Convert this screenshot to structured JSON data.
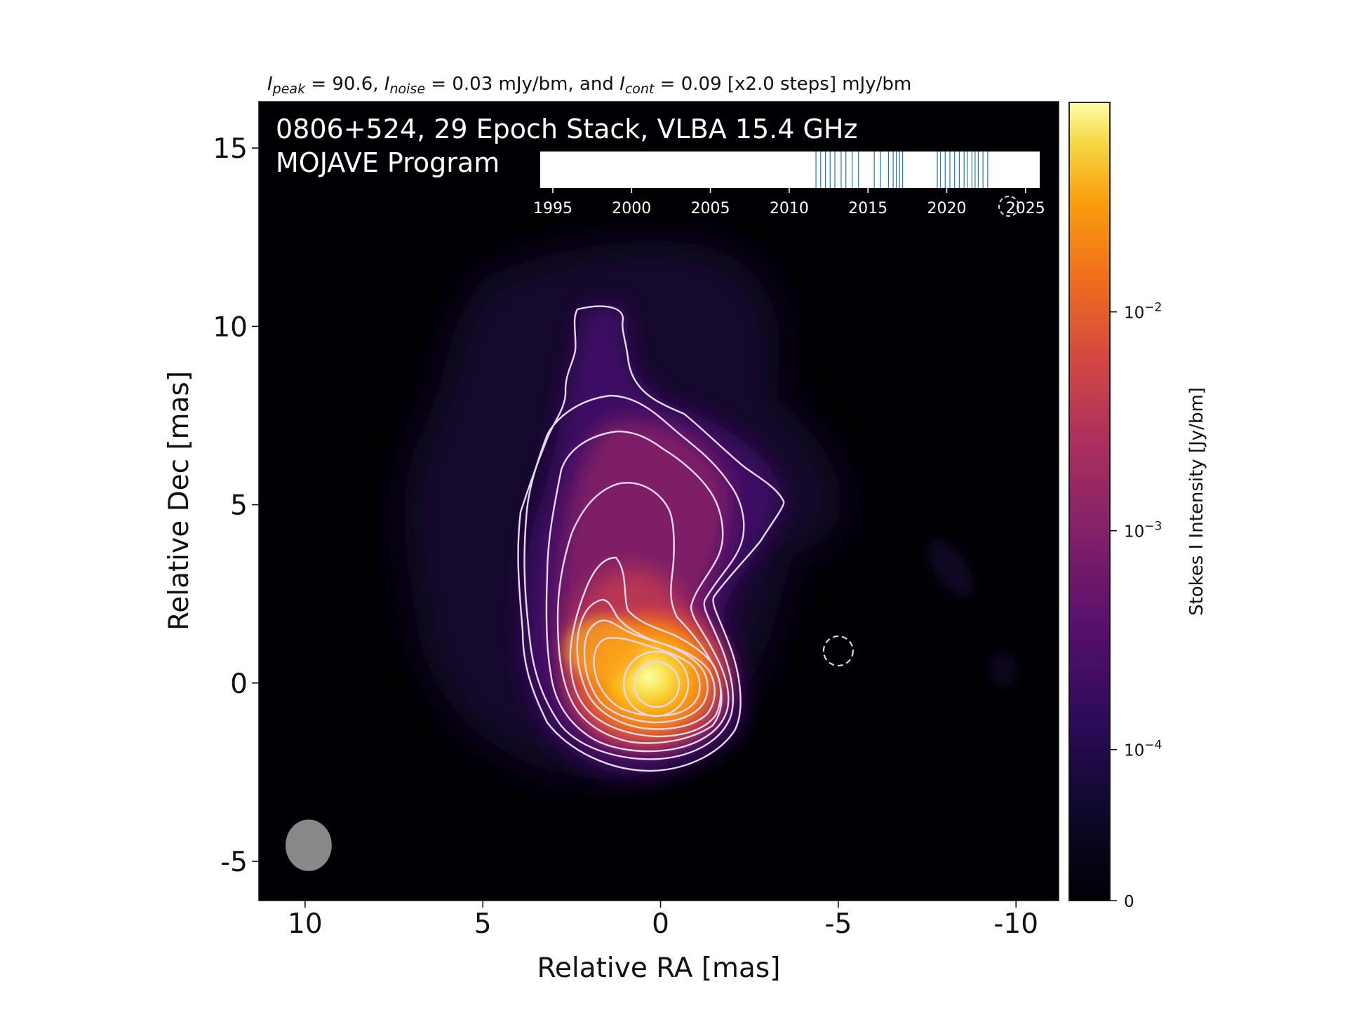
{
  "chart_data": {
    "type": "heatmap",
    "plot_title": {
      "i_peak_label": "I",
      "i_peak_sub": "peak",
      "i_peak_value": " = 90.6, ",
      "i_noise_label": "I",
      "i_noise_sub": "noise",
      "i_noise_value": " = 0.03 mJy/bm, and ",
      "i_cont_label": "I",
      "i_cont_sub": "cont",
      "i_cont_value": " = 0.09 [x2.0 steps] mJy/bm"
    },
    "annotation_line1": "0806+524, 29 Epoch Stack, VLBA 15.4 GHz",
    "annotation_line2": "MOJAVE Program",
    "xlabel": "Relative RA [mas]",
    "ylabel": "Relative Dec [mas]",
    "xlim": [
      11.3,
      -11.2
    ],
    "ylim": [
      -6.1,
      16.3
    ],
    "xticks": [
      10,
      5,
      0,
      -5,
      -10
    ],
    "xtick_labels": [
      "10",
      "5",
      "0",
      "-5",
      "-10"
    ],
    "yticks": [
      -5,
      0,
      5,
      10,
      15
    ],
    "ytick_labels": [
      "-5",
      "0",
      "5",
      "10",
      "15"
    ],
    "colormap": "inferno",
    "colorbar": {
      "label": "Stokes I Intensity [Jy/bm]",
      "scale": "log",
      "ticks": [
        0,
        0.0001,
        0.001,
        0.01
      ],
      "tick_base": [
        "0",
        "10",
        "10",
        "10"
      ],
      "tick_exp": [
        "",
        "−4",
        "−3",
        "−2"
      ],
      "max": 0.0906
    },
    "peak_intensity_mJy": 90.6,
    "noise_mJy": 0.03,
    "lowest_contour_mJy": 0.09,
    "contour_step_factor": 2.0,
    "contour_levels_mJy": [
      0.09,
      0.18,
      0.36,
      0.72,
      1.44,
      2.88,
      5.76,
      11.52,
      23.04,
      46.08
    ],
    "negative_contour_mJy": -0.09,
    "beam": {
      "ra": 9.9,
      "dec": -4.55,
      "major_mas": 1.45,
      "minor_mas": 1.3,
      "pa_deg": 0,
      "color": "#888888"
    },
    "peak_position": {
      "ra": 0,
      "dec": 0
    },
    "negative_contour_position": {
      "ra": -5.0,
      "dec": 0.9
    },
    "epoch_timeline": {
      "xlim": [
        1994.2,
        2025.9
      ],
      "ticks": [
        1995,
        2000,
        2005,
        2010,
        2015,
        2020,
        2025
      ],
      "tick_labels": [
        "1995",
        "2000",
        "2005",
        "2010",
        "2015",
        "2020",
        "2025"
      ],
      "epochs": [
        2011.7,
        2012.0,
        2012.3,
        2012.6,
        2012.9,
        2013.3,
        2013.6,
        2014.0,
        2014.4,
        2015.4,
        2015.8,
        2016.3,
        2016.6,
        2016.8,
        2017.0,
        2017.2,
        2019.4,
        2019.6,
        2019.9,
        2020.2,
        2020.5,
        2020.8,
        2021.1,
        2021.3,
        2021.6,
        2021.8,
        2022.0,
        2022.3,
        2022.6
      ],
      "line_color": "#1f77b4"
    }
  }
}
